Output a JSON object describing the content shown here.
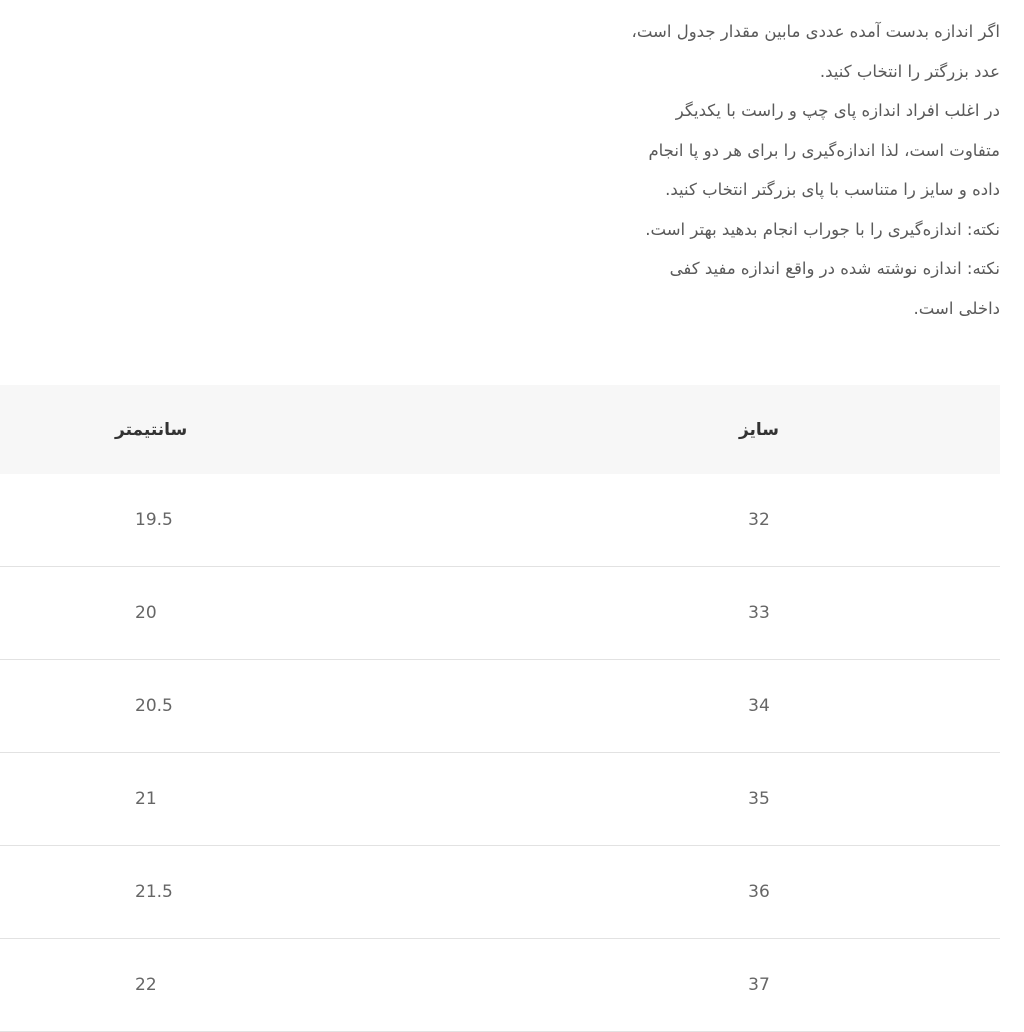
{
  "notes": [
    "اگر اندازه بدست آمده عددی مابین مقدار جدول است،",
    "عدد بزرگتر را انتخاب کنید.",
    "در اغلب افراد اندازه پای چپ و راست با یکدیگر",
    "متفاوت است، لذا اندازه‌گیری را برای هر دو پا انجام",
    "داده و سایز را متناسب با پای بزرگتر انتخاب کنید.",
    "نکته: اندازه‌گیری را با جوراب انجام بدهید بهتر است.",
    "نکته: اندازه نوشته شده در واقع اندازه مفید کفی",
    "داخلی است."
  ],
  "table": {
    "headers": [
      "سایز",
      "سانتیمتر"
    ],
    "rows": [
      [
        "32",
        "19.5"
      ],
      [
        "33",
        "20"
      ],
      [
        "34",
        "20.5"
      ],
      [
        "35",
        "21"
      ],
      [
        "36",
        "21.5"
      ],
      [
        "37",
        "22"
      ]
    ]
  }
}
